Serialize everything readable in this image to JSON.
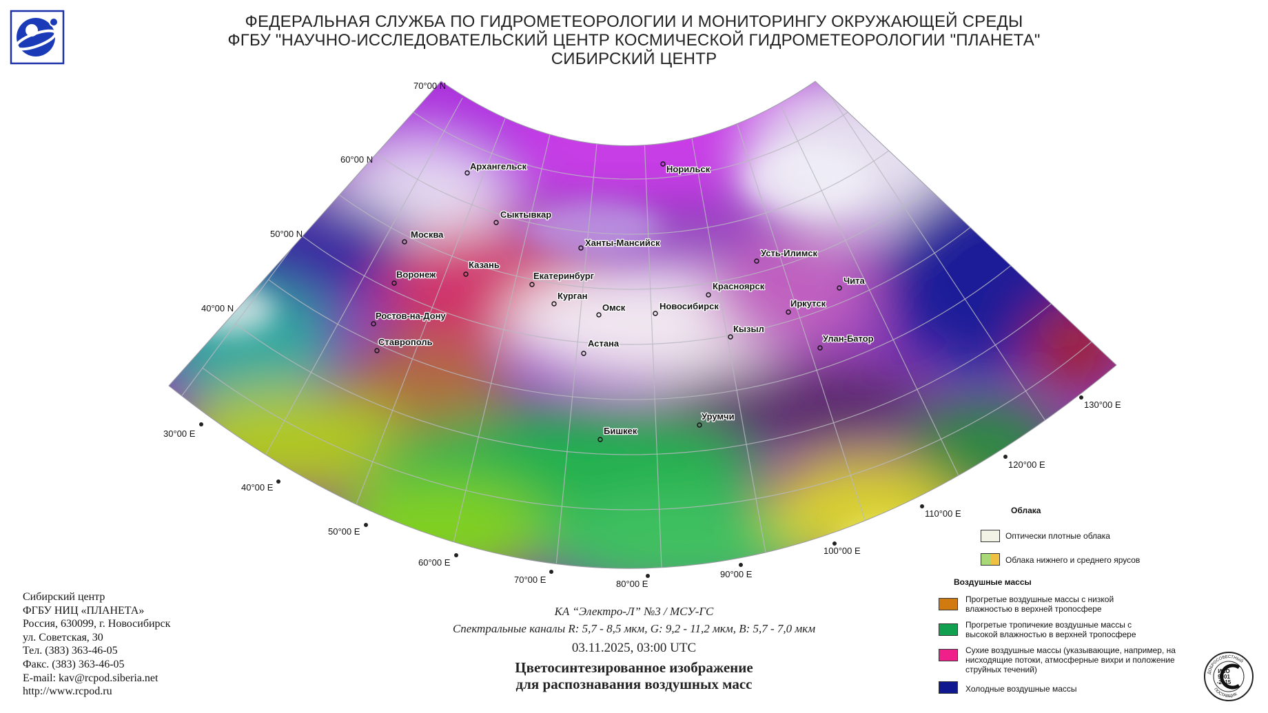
{
  "header": {
    "line1": "ФЕДЕРАЛЬНАЯ СЛУЖБА ПО ГИДРОМЕТЕОРОЛОГИИ И МОНИТОРИНГУ ОКРУЖАЮЩЕЙ СРЕДЫ",
    "line2": "ФГБУ \"НАУЧНО-ИССЛЕДОВАТЕЛЬСКИЙ ЦЕНТР КОСМИЧЕСКОЙ ГИДРОМЕТЕОРОЛОГИИ \"ПЛАНЕТА\"",
    "line3": "СИБИРСКИЙ ЦЕНТР"
  },
  "graticule": {
    "latitudes": [
      "70°00 N",
      "60°00 N",
      "50°00 N",
      "40°00 N"
    ],
    "longitudes": [
      "30°00 E",
      "40°00 E",
      "50°00 E",
      "60°00 E",
      "70°00 E",
      "80°00 E",
      "90°00 E",
      "100°00 E",
      "110°00 E",
      "120°00 E",
      "130°00 E"
    ]
  },
  "cities": [
    "Архангельск",
    "Норильск",
    "Сыктывкар",
    "Москва",
    "Ханты-Мансийск",
    "Усть-Илимск",
    "Казань",
    "Воронеж",
    "Екатеринбург",
    "Красноярск",
    "Чита",
    "Курган",
    "Омск",
    "Новосибирск",
    "Иркутск",
    "Ростов-на-Дону",
    "Кызыл",
    "Улан-Батор",
    "Ставрополь",
    "Астана",
    "Урумчи",
    "Бишкек"
  ],
  "address": {
    "line1": "Сибирский центр",
    "line2": "ФГБУ НИЦ «ПЛАНЕТА»",
    "line3": "Россия, 630099, г. Новосибирск",
    "line4": "ул. Советская, 30",
    "line5": "Тел. (383) 363-46-05",
    "line6": "Факс. (383) 363-46-05",
    "line7": "E-mail: kav@rcpod.siberia.net",
    "line8": "http://www.rcpod.ru"
  },
  "caption": {
    "satellite": "КА “Электро-Л” №3 / МСУ-ГС",
    "channels": "Спектральные каналы R: 5,7 - 8,5 мкм, G: 9,2 - 11,2 мкм, B: 5,7 - 7,0 мкм",
    "datetime": "03.11.2025, 03:00 UTC",
    "title1": "Цветосинтезированное изображение",
    "title2": "для распознавания воздушных масс"
  },
  "legend": {
    "clouds_header": "Облака",
    "dense_clouds": "Оптически плотные облака",
    "low_mid_clouds": "Облака нижнего и среднего ярусов",
    "airmass_header": "Воздушные массы",
    "warm_low_humidity": "Прогретые воздушные массы с низкой влажностью в верхней тропосфере",
    "tropical_high_humidity": "Прогретые тропичекие воздушные массы с высокой влажностью в верхней тропосфере",
    "dry_masses": "Сухие воздушные массы (указывающие, например, на нисходящие потоки, атмосферные вихри и положение струйных течений)",
    "cold_masses": "Холодные воздушные массы",
    "colors": {
      "dense_clouds": "#f2f2e6",
      "low_clouds_green": "#a8d878",
      "mid_clouds_yellow": "#f0c040",
      "warm_low_humidity": "#d07a10",
      "tropical_high_humidity": "#10a050",
      "dry_masses": "#f0208a",
      "cold_masses": "#101890"
    }
  },
  "iso_badge": {
    "ring_text": "ДОБРОСОВЕСТНЫЙ ПОСТАВЩИК",
    "line1": "ИСО",
    "line2": "9001",
    "line3": "-2015"
  }
}
